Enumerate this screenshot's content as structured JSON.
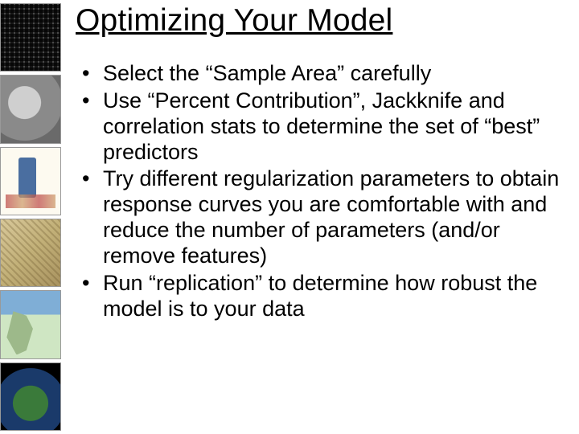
{
  "title": "Optimizing Your Model",
  "title_fontsize": 39,
  "title_underline": true,
  "body_fontsize": 27,
  "text_color": "#000000",
  "background_color": "#ffffff",
  "bullets": [
    "Select the “Sample Area” carefully",
    "Use “Percent Contribution”, Jackknife and correlation stats to determine the set of “best” predictors",
    "Try different regularization parameters to obtain response curves you are comfortable with and reduce the number of parameters (and/or remove features)",
    "Run “replication” to determine how robust the model is to your data"
  ],
  "sidebar_thumbs": [
    {
      "name": "grid-map-thumb"
    },
    {
      "name": "clay-tablet-thumb"
    },
    {
      "name": "medieval-map-thumb"
    },
    {
      "name": "parchment-map-thumb"
    },
    {
      "name": "europe-map-thumb"
    },
    {
      "name": "globe-thumb"
    }
  ]
}
